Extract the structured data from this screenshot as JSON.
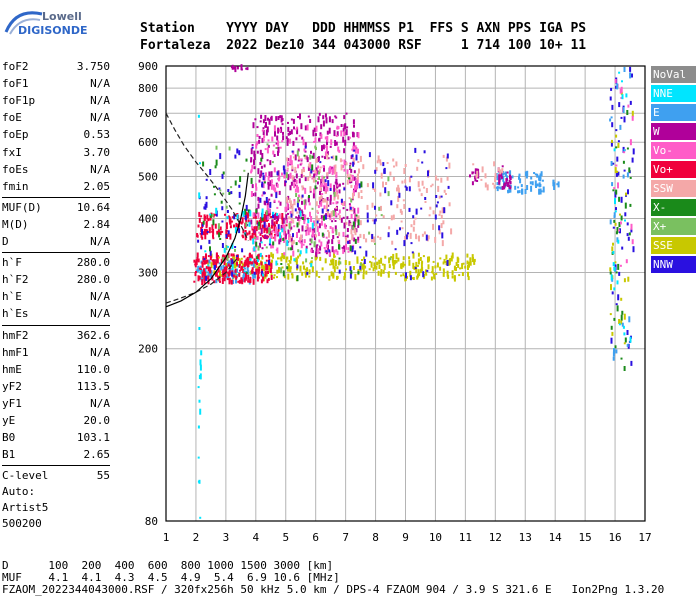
{
  "logo": {
    "line1": "Lowell",
    "line2": "DIGISONDE"
  },
  "header": {
    "line1": "Station    YYYY DAY   DDD HHMMSS P1  FFS S AXN PPS IGA PS",
    "line2": "Fortaleza  2022 Dez10 344 043000 RSF     1 714 100 10+ 11"
  },
  "params": [
    {
      "label": "foF2",
      "value": "3.750"
    },
    {
      "label": "foF1",
      "value": "N/A"
    },
    {
      "label": "foF1p",
      "value": "N/A"
    },
    {
      "label": "foE",
      "value": "N/A"
    },
    {
      "label": "foEp",
      "value": "0.53"
    },
    {
      "label": "fxI",
      "value": "3.70"
    },
    {
      "label": "foEs",
      "value": "N/A"
    },
    {
      "label": "fmin",
      "value": "2.05"
    },
    {
      "label": "MUF(D)",
      "value": "10.64"
    },
    {
      "label": "M(D)",
      "value": "2.84"
    },
    {
      "label": "D",
      "value": "N/A"
    },
    {
      "label": "h`F",
      "value": "280.0"
    },
    {
      "label": "h`F2",
      "value": "280.0"
    },
    {
      "label": "h`E",
      "value": "N/A"
    },
    {
      "label": "h`Es",
      "value": "N/A"
    },
    {
      "label": "hmF2",
      "value": "362.6"
    },
    {
      "label": "hmF1",
      "value": "N/A"
    },
    {
      "label": "hmE",
      "value": "110.0"
    },
    {
      "label": "yF2",
      "value": "113.5"
    },
    {
      "label": "yF1",
      "value": "N/A"
    },
    {
      "label": "yE",
      "value": "20.0"
    },
    {
      "label": "B0",
      "value": "103.1"
    },
    {
      "label": "B1",
      "value": "2.65"
    },
    {
      "label": "C-level",
      "value": "55"
    }
  ],
  "auto": {
    "line1": "Auto:",
    "line2": "Artist5",
    "line3": "500200"
  },
  "footer": {
    "line1": "D      100  200  400  600  800 1000 1500 3000 [km]",
    "line2": "MUF    4.1  4.1  4.3  4.5  4.9  5.4  6.9 10.6 [MHz]",
    "line3": "FZAOM_2022344043000.RSF / 320fx256h 50 kHz 5.0 km / DPS-4 FZAOM 904 / 3.9 S 321.6 E   Ion2Png 1.3.20"
  },
  "legend": [
    {
      "label": "NoVal",
      "color": "#8c8c8c"
    },
    {
      "label": "NNE",
      "color": "#00e5ff"
    },
    {
      "label": "E",
      "color": "#3fa0f0"
    },
    {
      "label": "W",
      "color": "#b0009a"
    },
    {
      "label": "Vo-",
      "color": "#ff5cc8"
    },
    {
      "label": "Vo+",
      "color": "#f0003c"
    },
    {
      "label": "SSW",
      "color": "#f4a8a8"
    },
    {
      "label": "X-",
      "color": "#1a8a1a"
    },
    {
      "label": "X+",
      "color": "#7ac060"
    },
    {
      "label": "SSE",
      "color": "#c8c800"
    },
    {
      "label": "NNW",
      "color": "#2a10e0"
    }
  ],
  "chart_data": {
    "type": "scatter",
    "title": "",
    "xlabel": "",
    "ylabel": "",
    "xlim": [
      1,
      17
    ],
    "ylim": [
      80,
      900
    ],
    "yscale": "log",
    "x_ticks": [
      1,
      2,
      3,
      4,
      5,
      6,
      7,
      8,
      9,
      10,
      11,
      12,
      13,
      14,
      15,
      16,
      17
    ],
    "y_ticks": [
      80,
      200,
      300,
      400,
      500,
      600,
      700,
      800,
      900
    ],
    "grid": true,
    "legend_position": "right",
    "clusters": [
      {
        "name": "SSE",
        "color": "#c8c800",
        "x": [
          2.2,
          11.3
        ],
        "y": [
          290,
          330
        ],
        "n": 320
      },
      {
        "name": "E",
        "color": "#3fa0f0",
        "x": [
          2.0,
          4.0
        ],
        "y": [
          285,
          320
        ],
        "n": 80
      },
      {
        "name": "Vo+",
        "color": "#f0003c",
        "x": [
          1.9,
          4.5
        ],
        "y": [
          285,
          330
        ],
        "n": 200
      },
      {
        "name": "Vo+",
        "color": "#f0003c",
        "x": [
          2.0,
          5.0
        ],
        "y": [
          360,
          410
        ],
        "n": 160
      },
      {
        "name": "W",
        "color": "#b0009a",
        "x": [
          3.8,
          7.4
        ],
        "y": [
          330,
          700
        ],
        "n": 380
      },
      {
        "name": "Vo-",
        "color": "#ff5cc8",
        "x": [
          3.8,
          7.4
        ],
        "y": [
          330,
          650
        ],
        "n": 260
      },
      {
        "name": "SSW",
        "color": "#f4a8a8",
        "x": [
          5.0,
          10.5
        ],
        "y": [
          350,
          560
        ],
        "n": 220
      },
      {
        "name": "NNW",
        "color": "#2a10e0",
        "x": [
          2.0,
          10.5
        ],
        "y": [
          290,
          600
        ],
        "n": 160
      },
      {
        "name": "X-",
        "color": "#1a8a1a",
        "x": [
          2.2,
          7.5
        ],
        "y": [
          290,
          560
        ],
        "n": 60
      },
      {
        "name": "X+",
        "color": "#7ac060",
        "x": [
          2.5,
          8.5
        ],
        "y": [
          300,
          600
        ],
        "n": 60
      },
      {
        "name": "NNE",
        "color": "#00e5ff",
        "x": [
          2.0,
          6.0
        ],
        "y": [
          290,
          420
        ],
        "n": 40
      },
      {
        "name": "E",
        "color": "#3fa0f0",
        "x": [
          12.0,
          13.6
        ],
        "y": [
          460,
          510
        ],
        "n": 70
      },
      {
        "name": "W",
        "color": "#b0009a",
        "x": [
          12.0,
          12.5
        ],
        "y": [
          470,
          530
        ],
        "n": 30
      },
      {
        "name": "W",
        "color": "#b0009a",
        "x": [
          11.1,
          11.4
        ],
        "y": [
          480,
          520
        ],
        "n": 12
      },
      {
        "name": "SSW",
        "color": "#f4a8a8",
        "x": [
          11.2,
          12.3
        ],
        "y": [
          470,
          540
        ],
        "n": 16
      },
      {
        "name": "E",
        "color": "#3fa0f0",
        "x": [
          13.8,
          14.1
        ],
        "y": [
          470,
          490
        ],
        "n": 8
      },
      {
        "name": "W",
        "color": "#b0009a",
        "x": [
          3.1,
          3.7
        ],
        "y": [
          880,
          895
        ],
        "n": 10
      },
      {
        "name": "NNE",
        "color": "#00e5ff",
        "x": [
          2.05,
          2.15
        ],
        "y": [
          80,
          900
        ],
        "n": 18
      },
      {
        "name": "NNW",
        "color": "#2a10e0",
        "x": [
          15.8,
          16.6
        ],
        "y": [
          180,
          900
        ],
        "n": 50
      },
      {
        "name": "X-",
        "color": "#1a8a1a",
        "x": [
          15.8,
          16.5
        ],
        "y": [
          180,
          900
        ],
        "n": 30
      },
      {
        "name": "SSE",
        "color": "#c8c800",
        "x": [
          15.8,
          16.6
        ],
        "y": [
          200,
          900
        ],
        "n": 25
      },
      {
        "name": "Vo-",
        "color": "#ff5cc8",
        "x": [
          15.9,
          16.6
        ],
        "y": [
          300,
          900
        ],
        "n": 20
      },
      {
        "name": "E",
        "color": "#3fa0f0",
        "x": [
          15.8,
          16.5
        ],
        "y": [
          180,
          900
        ],
        "n": 25
      },
      {
        "name": "NNE",
        "color": "#00e5ff",
        "x": [
          15.8,
          16.5
        ],
        "y": [
          180,
          900
        ],
        "n": 20
      }
    ],
    "curves": [
      {
        "name": "o-trace",
        "style": "dashed",
        "x": [
          1.0,
          1.3,
          1.6,
          2.0,
          2.4,
          2.8,
          3.2,
          3.55,
          3.75
        ],
        "y": [
          700,
          640,
          590,
          540,
          500,
          460,
          420,
          380,
          355
        ]
      },
      {
        "name": "x-trace",
        "style": "dashed",
        "x": [
          1.0,
          1.5,
          2.0,
          2.5,
          3.0,
          3.4
        ],
        "y": [
          255,
          262,
          270,
          282,
          300,
          325
        ]
      },
      {
        "name": "profile",
        "style": "solid",
        "x": [
          1.0,
          1.5,
          2.0,
          2.5,
          3.0,
          3.3,
          3.5,
          3.65,
          3.75
        ],
        "y": [
          250,
          258,
          270,
          290,
          325,
          360,
          400,
          450,
          510
        ]
      }
    ]
  }
}
